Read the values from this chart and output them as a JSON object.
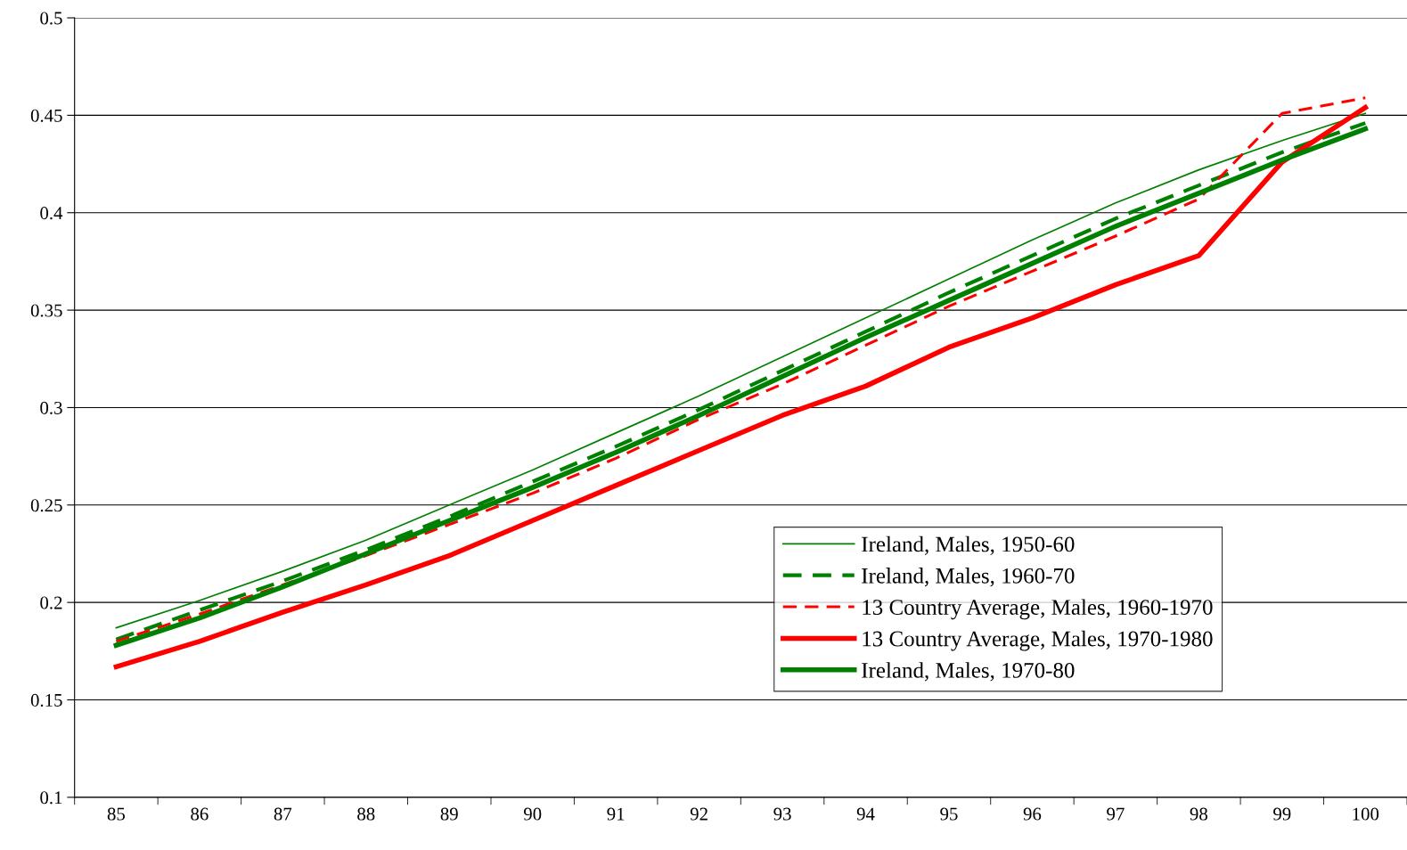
{
  "chart_data": {
    "type": "line",
    "categories": [
      "85",
      "86",
      "87",
      "88",
      "89",
      "90",
      "91",
      "92",
      "93",
      "94",
      "95",
      "96",
      "97",
      "98",
      "99",
      "100"
    ],
    "ylim": [
      0.1,
      0.5
    ],
    "yticks": [
      0.1,
      0.15,
      0.2,
      0.25,
      0.3,
      0.35,
      0.4,
      0.45,
      0.5
    ],
    "grid": "y",
    "legend": "bottom right",
    "marker": "none",
    "series": [
      {
        "name": "Ireland, Males, 1950-60",
        "color": "#008000",
        "line_style": "solid",
        "values": [
          0.187,
          0.201,
          0.216,
          0.232,
          0.25,
          0.268,
          0.287,
          0.306,
          0.326,
          0.346,
          0.366,
          0.386,
          0.405,
          0.422,
          0.437,
          0.451
        ]
      },
      {
        "name": "Ireland, Males, 1960-70",
        "color": "#008000",
        "line_style": "dashed",
        "values": [
          0.181,
          0.196,
          0.211,
          0.227,
          0.244,
          0.262,
          0.28,
          0.299,
          0.319,
          0.339,
          0.359,
          0.378,
          0.397,
          0.414,
          0.431,
          0.446
        ]
      },
      {
        "name": "13 Country Average, Males, 1960-1970",
        "color": "#ff0000",
        "line_style": "dashed",
        "values": [
          0.18,
          0.194,
          0.209,
          0.224,
          0.24,
          0.256,
          0.274,
          0.294,
          0.312,
          0.332,
          0.352,
          0.37,
          0.388,
          0.407,
          0.451,
          0.459
        ]
      },
      {
        "name": "13 Country Average, Males, 1970-1980",
        "color": "#ff0000",
        "line_style": "solid",
        "values": [
          0.167,
          0.18,
          0.195,
          0.209,
          0.224,
          0.242,
          0.26,
          0.278,
          0.296,
          0.311,
          0.331,
          0.346,
          0.363,
          0.378,
          0.426,
          0.454
        ]
      },
      {
        "name": "Ireland, Males, 1970-80",
        "color": "#008000",
        "line_style": "solid",
        "values": [
          0.178,
          0.192,
          0.208,
          0.225,
          0.242,
          0.259,
          0.277,
          0.296,
          0.316,
          0.336,
          0.355,
          0.374,
          0.393,
          0.41,
          0.427,
          0.443
        ]
      }
    ]
  }
}
